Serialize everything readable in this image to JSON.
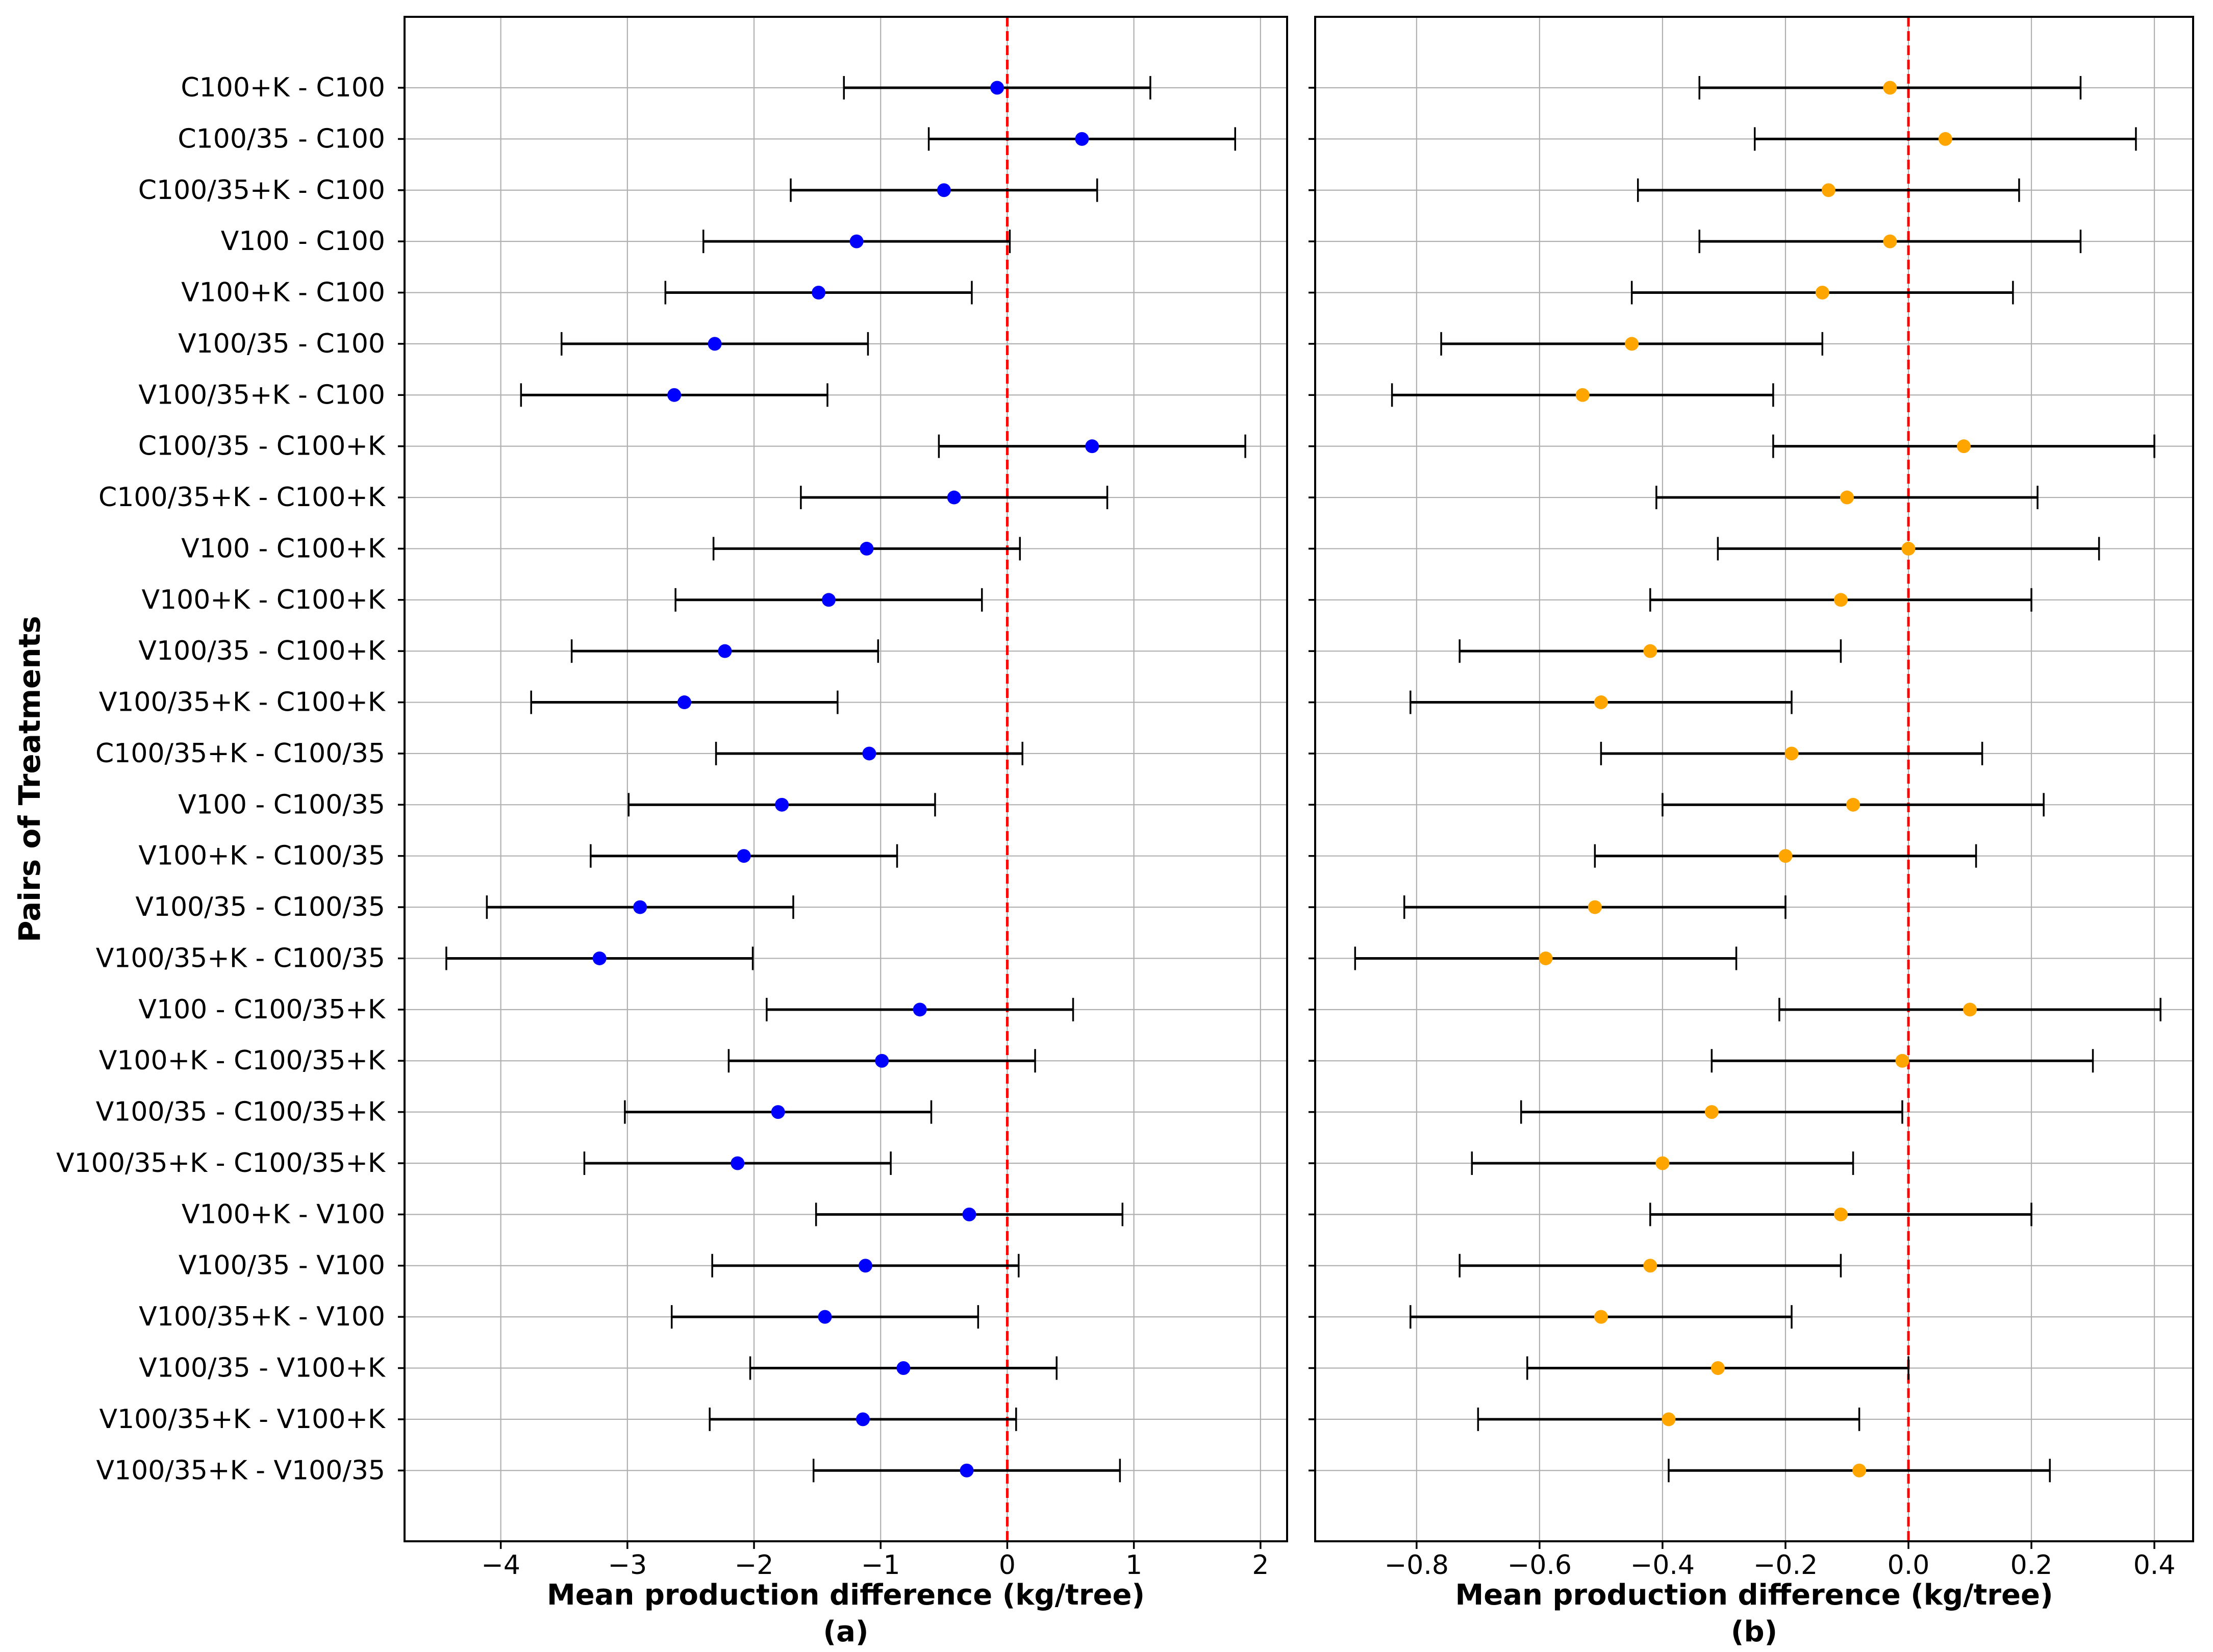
{
  "ylabel": "Pairs of Treatments",
  "categories": [
    "C100+K - C100",
    "C100/35 - C100",
    "C100/35+K - C100",
    "V100 - C100",
    "V100+K - C100",
    "V100/35 - C100",
    "V100/35+K - C100",
    "C100/35 - C100+K",
    "C100/35+K - C100+K",
    "V100 - C100+K",
    "V100+K - C100+K",
    "V100/35 - C100+K",
    "V100/35+K - C100+K",
    "C100/35+K - C100/35",
    "V100 - C100/35",
    "V100+K - C100/35",
    "V100/35 - C100/35",
    "V100/35+K - C100/35",
    "V100 - C100/35+K",
    "V100+K - C100/35+K",
    "V100/35 - C100/35+K",
    "V100/35+K - C100/35+K",
    "V100+K - V100",
    "V100/35 - V100",
    "V100/35+K - V100",
    "V100/35 - V100+K",
    "V100/35+K - V100+K",
    "V100/35+K - V100/35"
  ],
  "chart_data": [
    {
      "panel": "a",
      "type": "errorbar",
      "title": "",
      "xlabel": "Mean production difference (kg/tree)",
      "sub_label": "(a)",
      "marker": "circle",
      "marker_color": "#0000ff",
      "errorbar_color": "#000000",
      "ref_line_value": 0,
      "ref_line_color": "#ff0000",
      "grid": true,
      "xlim": [
        -4.76,
        2.21
      ],
      "xticks": [
        -4,
        -3,
        -2,
        -1,
        0,
        1,
        2
      ],
      "xticklabels": [
        "−4",
        "−3",
        "−2",
        "−1",
        "0",
        "1",
        "2"
      ],
      "ci_halfwidth": 1.21,
      "means": [
        -0.08,
        0.59,
        -0.5,
        -1.19,
        -1.49,
        -2.31,
        -2.63,
        0.67,
        -0.42,
        -1.11,
        -1.41,
        -2.23,
        -2.55,
        -1.09,
        -1.78,
        -2.08,
        -2.9,
        -3.22,
        -0.69,
        -0.99,
        -1.81,
        -2.13,
        -0.3,
        -1.12,
        -1.44,
        -0.82,
        -1.14,
        -0.32
      ],
      "ci_low": [
        -1.29,
        -0.62,
        -1.71,
        -2.4,
        -2.7,
        -3.52,
        -3.84,
        -0.54,
        -1.63,
        -2.32,
        -2.62,
        -3.44,
        -3.76,
        -2.3,
        -2.99,
        -3.29,
        -4.11,
        -4.43,
        -1.9,
        -2.2,
        -3.02,
        -3.34,
        -1.51,
        -2.33,
        -2.65,
        -2.03,
        -2.35,
        -1.53
      ],
      "ci_high": [
        1.13,
        1.8,
        0.71,
        0.02,
        -0.28,
        -1.1,
        -1.42,
        1.88,
        0.79,
        0.1,
        -0.2,
        -1.02,
        -1.34,
        0.12,
        -0.57,
        -0.87,
        -1.69,
        -2.01,
        0.52,
        0.22,
        -0.6,
        -0.92,
        0.91,
        0.09,
        -0.23,
        0.39,
        0.07,
        0.89
      ]
    },
    {
      "panel": "b",
      "type": "errorbar",
      "title": "",
      "xlabel": "Mean production difference (kg/tree)",
      "sub_label": "(b)",
      "marker": "circle",
      "marker_color": "#ffa500",
      "errorbar_color": "#000000",
      "ref_line_value": 0,
      "ref_line_color": "#ff0000",
      "grid": true,
      "xlim": [
        -0.965,
        0.463
      ],
      "xticks": [
        -0.8,
        -0.6,
        -0.4,
        -0.2,
        0.0,
        0.2,
        0.4
      ],
      "xticklabels": [
        "−0.8",
        "−0.6",
        "−0.4",
        "−0.2",
        "0.0",
        "0.2",
        "0.4"
      ],
      "ci_halfwidth": 0.31,
      "means": [
        -0.03,
        0.06,
        -0.13,
        -0.03,
        -0.14,
        -0.45,
        -0.53,
        0.09,
        -0.1,
        0.0,
        -0.11,
        -0.42,
        -0.5,
        -0.19,
        -0.09,
        -0.2,
        -0.51,
        -0.59,
        0.1,
        -0.01,
        -0.32,
        -0.4,
        -0.11,
        -0.42,
        -0.5,
        -0.31,
        -0.39,
        -0.08
      ],
      "ci_low": [
        -0.34,
        -0.25,
        -0.44,
        -0.34,
        -0.45,
        -0.76,
        -0.84,
        -0.22,
        -0.41,
        -0.31,
        -0.42,
        -0.73,
        -0.81,
        -0.5,
        -0.4,
        -0.51,
        -0.82,
        -0.9,
        -0.21,
        -0.32,
        -0.63,
        -0.71,
        -0.42,
        -0.73,
        -0.81,
        -0.62,
        -0.7,
        -0.39
      ],
      "ci_high": [
        0.28,
        0.37,
        0.18,
        0.28,
        0.17,
        -0.14,
        -0.22,
        0.4,
        0.21,
        0.31,
        0.2,
        -0.11,
        -0.19,
        0.12,
        0.22,
        0.11,
        -0.2,
        -0.28,
        0.41,
        0.3,
        -0.01,
        -0.09,
        0.2,
        -0.11,
        -0.19,
        0.0,
        -0.08,
        0.23
      ]
    }
  ],
  "style": {
    "grid_color": "#b0b0b0",
    "spine_color": "#000000",
    "text_color": "#000000",
    "background": "#ffffff"
  }
}
